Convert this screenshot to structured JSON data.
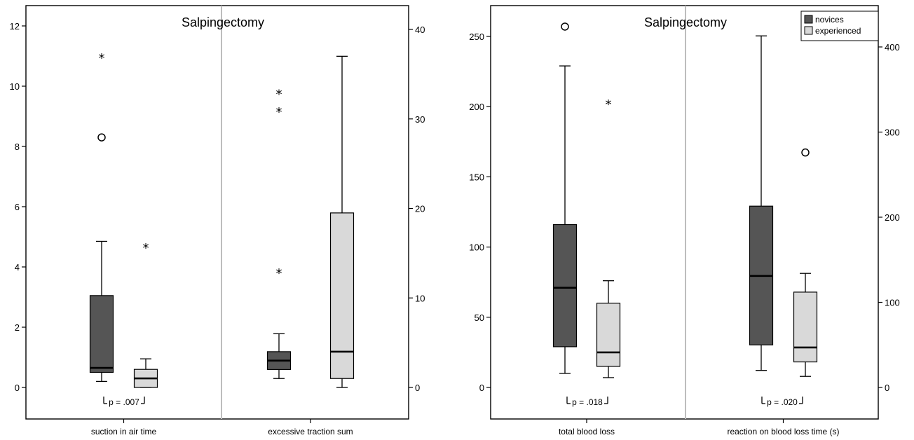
{
  "colors": {
    "novices": "#555555",
    "experienced": "#d9d9d9"
  },
  "chart_data": [
    {
      "type": "box",
      "title": "Salpingectomy",
      "legend": {
        "placement": "top-right",
        "entries": []
      },
      "groups": [
        {
          "category": "suction in air time",
          "axis": "left",
          "ylim": [
            -0.9,
            12.6
          ],
          "yticks": [
            0,
            2,
            4,
            6,
            8,
            10,
            12
          ],
          "yticklabels": [
            "0",
            "2",
            "4",
            "6",
            "8",
            "10",
            "12"
          ],
          "pvalue": "p = .007",
          "boxes": [
            {
              "series": "novices",
              "whisker_low": 0.2,
              "q1": 0.5,
              "median": 0.65,
              "q3": 3.05,
              "whisker_high": 4.85,
              "outliers": [
                {
                  "value": 11.0,
                  "marker": "star",
                  "label": "*"
                },
                {
                  "value": 8.3,
                  "marker": "circle"
                }
              ]
            },
            {
              "series": "experienced",
              "whisker_low": 0.0,
              "q1": 0.0,
              "median": 0.3,
              "q3": 0.6,
              "whisker_high": 0.95,
              "outliers": [
                {
                  "value": 4.7,
                  "marker": "star",
                  "label": "*"
                }
              ]
            }
          ]
        },
        {
          "category": "excessive traction sum",
          "axis": "right",
          "ylim": [
            -3,
            42
          ],
          "yticks": [
            0,
            10,
            20,
            30,
            40
          ],
          "yticklabels": [
            "0",
            "10",
            "20",
            "30",
            "40"
          ],
          "pvalue": "",
          "boxes": [
            {
              "series": "novices",
              "whisker_low": 1.0,
              "q1": 2.0,
              "median": 3.0,
              "q3": 4.0,
              "whisker_high": 6.0,
              "outliers": [
                {
                  "value": 33.0,
                  "marker": "star",
                  "label": "*"
                },
                {
                  "value": 31.0,
                  "marker": "star",
                  "label": "*"
                },
                {
                  "value": 13.0,
                  "marker": "star",
                  "label": "*"
                }
              ]
            },
            {
              "series": "experienced",
              "whisker_low": 0.0,
              "q1": 1.0,
              "median": 4.0,
              "q3": 19.5,
              "whisker_high": 37.0,
              "outliers": []
            }
          ]
        }
      ]
    },
    {
      "type": "box",
      "title": "Salpingectomy",
      "legend": {
        "placement": "top-right",
        "entries": [
          "novices",
          "experienced"
        ]
      },
      "groups": [
        {
          "category": "total blood loss",
          "axis": "left",
          "ylim": [
            -17,
            268
          ],
          "yticks": [
            0,
            50,
            100,
            150,
            200,
            250
          ],
          "yticklabels": [
            "0",
            "50",
            "100",
            "150",
            "200",
            "250"
          ],
          "pvalue": "p = .018",
          "boxes": [
            {
              "series": "novices",
              "whisker_low": 10,
              "q1": 29,
              "median": 71,
              "q3": 116,
              "whisker_high": 229,
              "outliers": [
                {
                  "value": 257,
                  "marker": "circle"
                }
              ]
            },
            {
              "series": "experienced",
              "whisker_low": 7,
              "q1": 15,
              "median": 25,
              "q3": 60,
              "whisker_high": 76,
              "outliers": [
                {
                  "value": 203,
                  "marker": "star",
                  "label": "*"
                }
              ]
            }
          ]
        },
        {
          "category": "reaction on blood loss time (s)",
          "axis": "right",
          "ylim": [
            -28,
            445
          ],
          "yticks": [
            0,
            100,
            200,
            300,
            400
          ],
          "yticklabels": [
            "0",
            "100",
            "200",
            "300",
            "400"
          ],
          "pvalue": "p = .020",
          "boxes": [
            {
              "series": "novices",
              "whisker_low": 20,
              "q1": 50,
              "median": 131,
              "q3": 213,
              "whisker_high": 413,
              "outliers": []
            },
            {
              "series": "experienced",
              "whisker_low": 13,
              "q1": 30,
              "median": 47,
              "q3": 112,
              "whisker_high": 134,
              "outliers": [
                {
                  "value": 276,
                  "marker": "circle"
                }
              ]
            }
          ]
        }
      ]
    }
  ]
}
